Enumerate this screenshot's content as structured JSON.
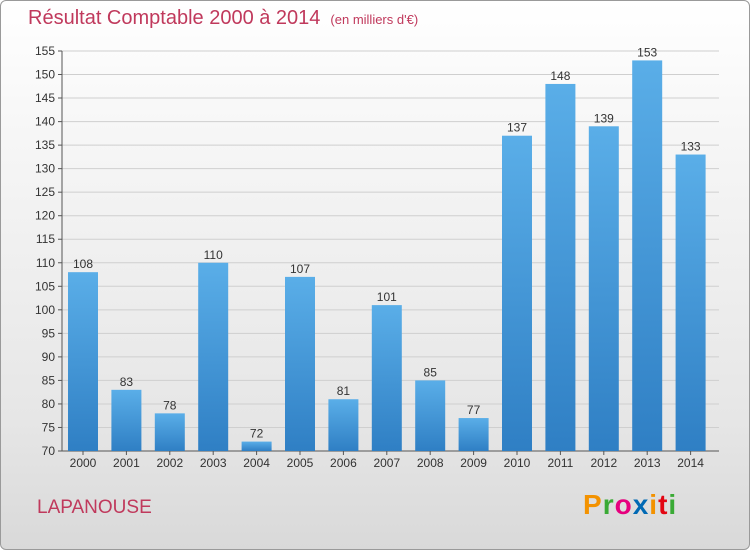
{
  "title": "Résultat Comptable 2000 à 2014",
  "unit": "(en milliers d'€)",
  "commune": "LAPANOUSE",
  "logo": {
    "letters": [
      "P",
      "r",
      "o",
      "x",
      "i",
      "t",
      "i"
    ],
    "colors": [
      "#f39200",
      "#3aaa35",
      "#e6007e",
      "#0069b4",
      "#f39200",
      "#e30613",
      "#3aaa35"
    ]
  },
  "colors": {
    "bar_light": "#5aaee8",
    "bar_dark": "#2f7fc4",
    "title": "#c0395c",
    "gridline": "#cfcfcf"
  },
  "chart_data": {
    "type": "bar",
    "categories": [
      "2000",
      "2001",
      "2002",
      "2003",
      "2004",
      "2005",
      "2006",
      "2007",
      "2008",
      "2009",
      "2010",
      "2011",
      "2012",
      "2013",
      "2014"
    ],
    "values": [
      108,
      83,
      78,
      110,
      72,
      107,
      81,
      101,
      85,
      77,
      137,
      148,
      139,
      153,
      133
    ],
    "data_labels": [
      "108",
      "83",
      "78",
      "110",
      "72",
      "107",
      "81",
      "101",
      "85",
      "77",
      "137",
      "148",
      "139",
      "153",
      "133"
    ],
    "yticks": [
      70,
      75,
      80,
      85,
      90,
      95,
      100,
      105,
      110,
      115,
      120,
      125,
      130,
      135,
      140,
      145,
      150,
      155
    ],
    "ylim": [
      70,
      155
    ],
    "grid": true,
    "legend": "none"
  }
}
